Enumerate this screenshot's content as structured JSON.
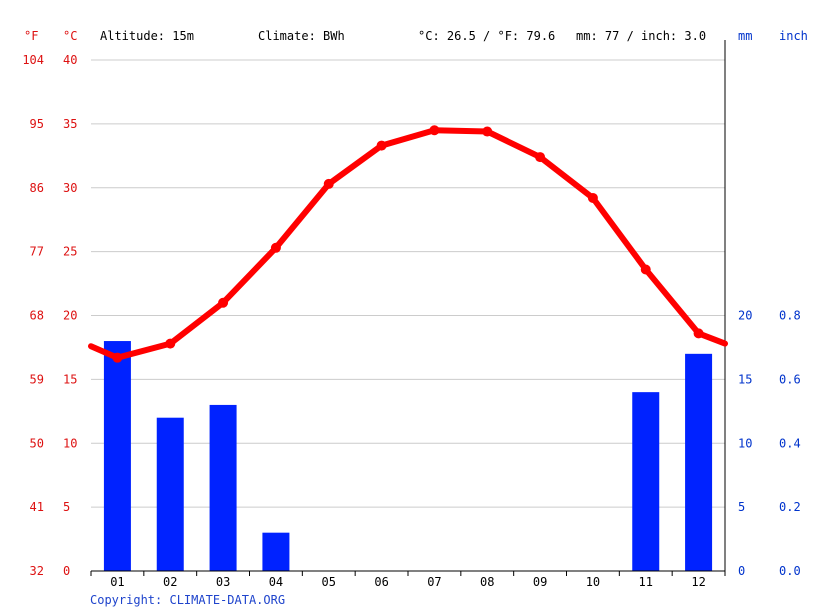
{
  "header": {
    "unit_f": "°F",
    "unit_c": "°C",
    "altitude": "Altitude: 15m",
    "climate": "Climate: BWh",
    "temp_avg": "°C: 26.5 / °F: 79.6",
    "precip_total": "mm: 77 / inch: 3.0",
    "unit_mm": "mm",
    "unit_inch": "inch"
  },
  "footer": {
    "copyright": "Copyright: CLIMATE-DATA.ORG"
  },
  "colors": {
    "temperature": "#ff0000",
    "precipitation": "#0022ff",
    "precip_axis_text": "#0033cc",
    "temp_axis_text": "#dd1111",
    "grid": "#cccccc"
  },
  "chart_data": {
    "type": "bar+line",
    "categories": [
      "01",
      "02",
      "03",
      "04",
      "05",
      "06",
      "07",
      "08",
      "09",
      "10",
      "11",
      "12"
    ],
    "temperature_c": [
      16.7,
      17.8,
      21.0,
      25.3,
      30.3,
      33.3,
      34.5,
      34.4,
      32.4,
      29.2,
      23.6,
      18.6
    ],
    "temperature_edge_c": [
      17.6,
      17.8
    ],
    "precipitation_mm": [
      18,
      12,
      13,
      3,
      0,
      0,
      0,
      0,
      0,
      0,
      14,
      17
    ],
    "celsius_ticks": [
      0,
      5,
      10,
      15,
      20,
      25,
      30,
      35,
      40
    ],
    "fahrenheit_ticks": [
      32,
      41,
      50,
      59,
      68,
      77,
      86,
      95,
      104
    ],
    "mm_ticks": [
      0,
      5,
      10,
      15,
      20
    ],
    "inch_ticks": [
      "0.0",
      "0.2",
      "0.4",
      "0.6",
      "0.8"
    ],
    "ylim_c": [
      0,
      40
    ],
    "ylim_mm": [
      0,
      20
    ],
    "grid": true
  }
}
